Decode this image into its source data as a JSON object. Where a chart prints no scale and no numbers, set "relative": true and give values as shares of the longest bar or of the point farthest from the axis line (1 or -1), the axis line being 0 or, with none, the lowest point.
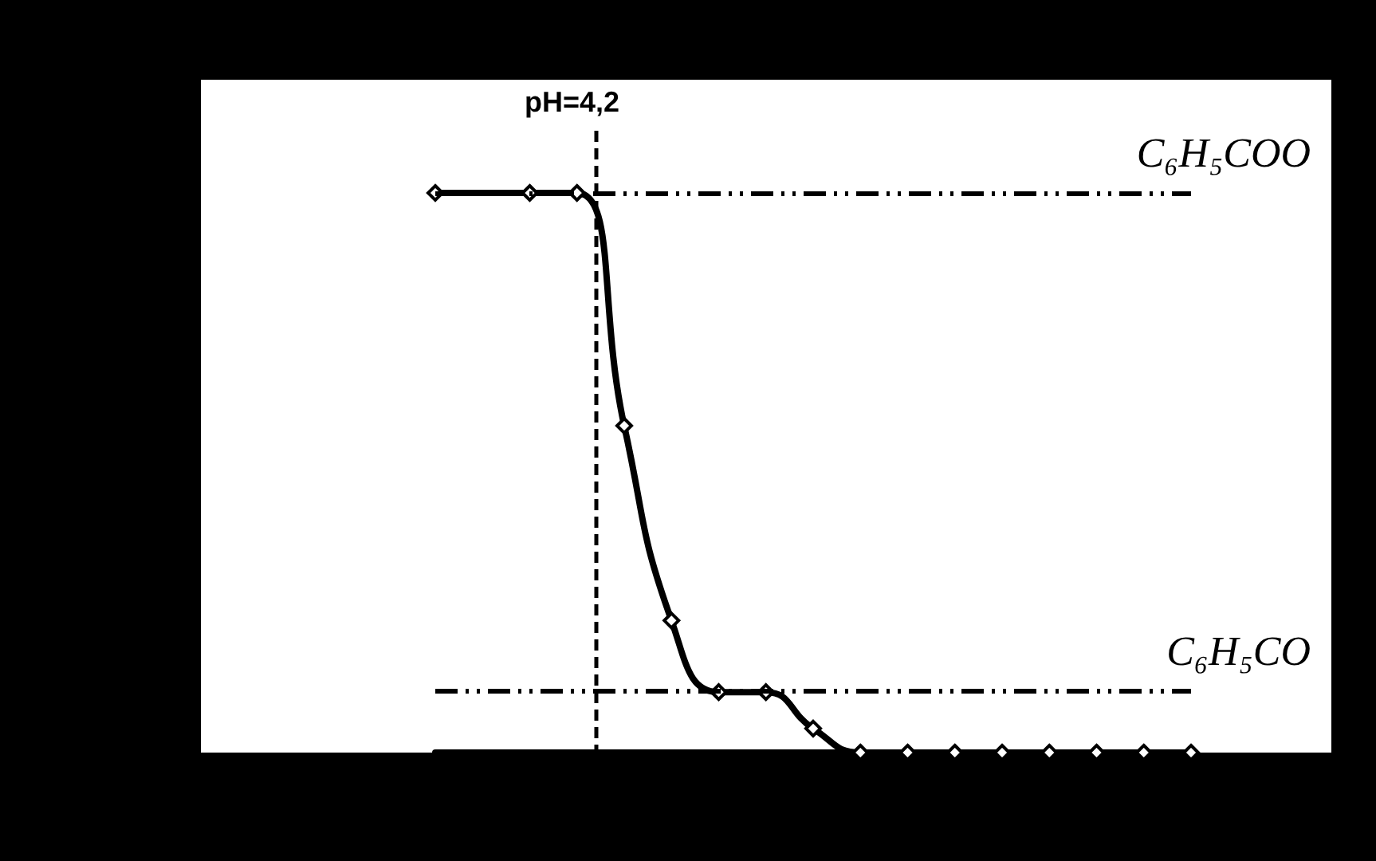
{
  "chart_data": {
    "type": "line",
    "relative": true,
    "marker": "diamond",
    "line_style": "solid",
    "grid": false,
    "categories": [
      null,
      null,
      null,
      null,
      null,
      null,
      null,
      null,
      null,
      null,
      null,
      null,
      null,
      null,
      null,
      null,
      null
    ],
    "series": [
      {
        "color": "#000000",
        "values": [
          1,
          null,
          1,
          1,
          0.584,
          0.236,
          0.108,
          0.108,
          0.043,
          0,
          0,
          0,
          0,
          0,
          0,
          0,
          0
        ]
      }
    ],
    "ref_lines": [
      {
        "axis": "y",
        "value": 1,
        "label": "C₆H₅COO",
        "line_style": "dashdot"
      },
      {
        "axis": "y",
        "value": 0.108,
        "label": "C₆H₅CO",
        "line_style": "dashdot"
      }
    ],
    "annotations": [
      "pH=4,2"
    ]
  }
}
